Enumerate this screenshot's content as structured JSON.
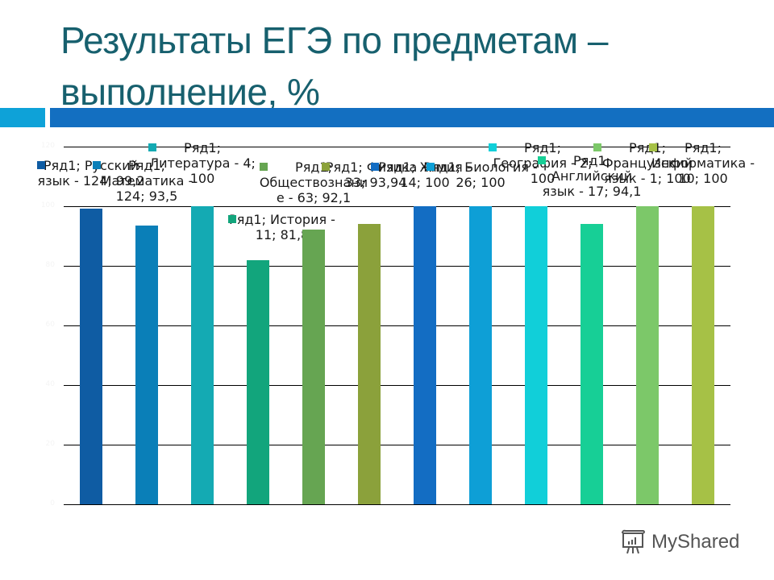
{
  "slide": {
    "title_line1": "Результаты ЕГЭ по предметам –",
    "title_line2": "выполнение, %",
    "title_color": "#17606e",
    "accent_colors": [
      "#0ea2d8",
      "#136fc1"
    ]
  },
  "watermark": {
    "text": "MyShared"
  },
  "chart_data": {
    "type": "bar",
    "title": "Результаты ЕГЭ по предметам – выполнение, %",
    "xlabel": "",
    "ylabel": "",
    "ylim": [
      0,
      120
    ],
    "yticks": [
      0,
      20,
      40,
      60,
      80,
      100,
      120
    ],
    "grid": true,
    "legend": "none",
    "series_name": "Ряд1",
    "categories": [
      "Русский язык",
      "Математика",
      "Литература",
      "История",
      "Обществознание",
      "Физика",
      "Химия",
      "Биология",
      "География",
      "Английский язык",
      "Французский язык",
      "Информатика"
    ],
    "participants": [
      124,
      124,
      4,
      11,
      63,
      33,
      14,
      26,
      2,
      17,
      1,
      10
    ],
    "values": [
      99.2,
      93.5,
      100,
      81.8,
      92.1,
      93.94,
      100,
      100,
      100,
      94.1,
      100,
      100
    ],
    "colors": [
      "#0f5ca3",
      "#0a7fb8",
      "#14aab3",
      "#12a57c",
      "#66a552",
      "#8ba13b",
      "#136dc3",
      "#0e9fd6",
      "#11cfd9",
      "#17cf96",
      "#7cc869",
      "#a6c146"
    ],
    "data_labels": [
      "Ряд1; Русский\nязык - 124; 99,2",
      "Ряд1;\nМатематика -\n124; 93,5",
      "Ряд1;\nЛитература - 4;\n100",
      "Ряд1; История -\n11; 81,8",
      "Ряд1;\nОбществознани\nе - 63; 92,1",
      "Ряд1; Физика -\n33; 93,94",
      "Ряд1; Химия -\n14; 100",
      "Ряд1; Биология -\n26; 100",
      "Ряд1;\nГеография - 2;\n100",
      "Ряд1;\nАнглийский\nязык - 17; 94,1",
      "Ряд1;\nФранцузский\nязык - 1; 100",
      "Ряд1;\nИнформатика -\n10; 100"
    ]
  }
}
